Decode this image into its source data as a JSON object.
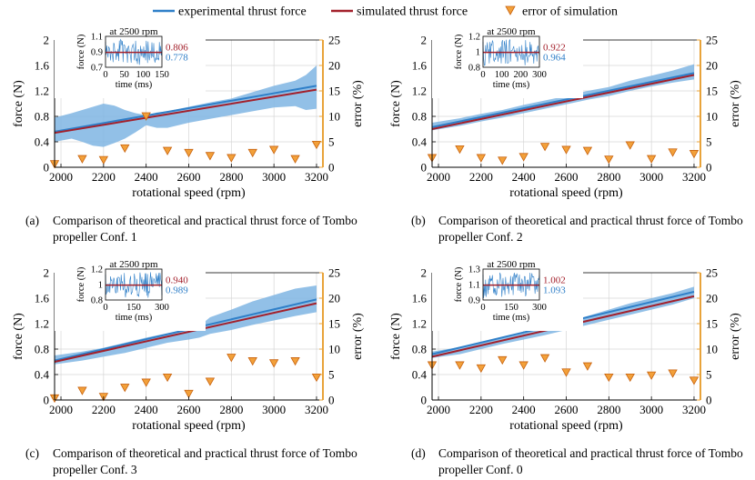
{
  "legend": {
    "experimental": "experimental thrust force",
    "simulated": "simulated thrust force",
    "error": "error of simulation"
  },
  "colors": {
    "experimental": "#2f7fc8",
    "band": "#7fb5e3",
    "simulated": "#a3202b",
    "error_fill": "#f2a03a",
    "error_stroke": "#c8620e",
    "right_axis": "#e8a33a"
  },
  "chart_data": [
    {
      "type": "line",
      "panel": "(a)",
      "caption_label": "(a)",
      "caption": "Comparison of theoretical and practical thrust force of Tombo propeller Conf. 1",
      "xlabel": "rotational speed (rpm)",
      "ylabel": "force (N)",
      "y2label": "error (%)",
      "xlim": [
        1970,
        3230
      ],
      "ylim": [
        0,
        2
      ],
      "y2lim": [
        0,
        25
      ],
      "xticks": [
        2000,
        2200,
        2400,
        2600,
        2800,
        3000,
        3200
      ],
      "yticks": [
        "0",
        "0.4",
        "0.8",
        "1.2",
        "1.6",
        "2"
      ],
      "y2ticks": [
        "0",
        "5",
        "10",
        "15",
        "20",
        "25"
      ],
      "experimental": {
        "x": [
          1970,
          3200
        ],
        "y": [
          0.56,
          1.28
        ]
      },
      "simulated": {
        "x": [
          1970,
          3200
        ],
        "y": [
          0.54,
          1.22
        ]
      },
      "band": {
        "x": [
          1970,
          2050,
          2100,
          2150,
          2200,
          2250,
          2300,
          2350,
          2400,
          2450,
          2500,
          2600,
          2700,
          2800,
          2900,
          3000,
          3100,
          3150,
          3200
        ],
        "upper": [
          0.78,
          0.85,
          0.9,
          0.95,
          1.0,
          0.97,
          0.9,
          0.85,
          0.82,
          0.86,
          0.88,
          0.95,
          1.02,
          1.08,
          1.18,
          1.28,
          1.36,
          1.45,
          1.6
        ],
        "lower": [
          0.4,
          0.45,
          0.4,
          0.34,
          0.32,
          0.38,
          0.45,
          0.55,
          0.66,
          0.62,
          0.62,
          0.7,
          0.76,
          0.82,
          0.88,
          0.94,
          0.96,
          0.9,
          0.92
        ]
      },
      "error": {
        "x": [
          1970,
          2100,
          2200,
          2300,
          2400,
          2500,
          2600,
          2700,
          2800,
          2900,
          3000,
          3100,
          3200
        ],
        "y": [
          0.6,
          1.6,
          1.4,
          3.7,
          10.0,
          3.2,
          2.8,
          2.2,
          1.8,
          2.8,
          3.4,
          1.6,
          4.4
        ]
      },
      "inset": {
        "title": "at 2500 rpm",
        "ylabel": "force (N)",
        "xlabel": "time (ms)",
        "yticks": [
          "1.1",
          "0.9",
          "0.7"
        ],
        "xticks": [
          "0",
          "50",
          "100",
          "150"
        ],
        "simulated_value": "0.806",
        "experimental_value": "0.778"
      }
    },
    {
      "type": "line",
      "panel": "(b)",
      "caption_label": "(b)",
      "caption": "Comparison of theoretical and practical thrust force of Tombo propeller Conf. 2",
      "xlabel": "rotational speed (rpm)",
      "ylabel": "force (N)",
      "y2label": "error (%)",
      "xlim": [
        1970,
        3230
      ],
      "ylim": [
        0,
        2
      ],
      "y2lim": [
        0,
        25
      ],
      "xticks": [
        2000,
        2200,
        2400,
        2600,
        2800,
        3000,
        3200
      ],
      "yticks": [
        "0",
        "0.4",
        "0.8",
        "1.2",
        "1.6",
        "2"
      ],
      "y2ticks": [
        "0",
        "5",
        "10",
        "15",
        "20",
        "25"
      ],
      "experimental": {
        "x": [
          1970,
          3200
        ],
        "y": [
          0.63,
          1.48
        ]
      },
      "simulated": {
        "x": [
          1970,
          3200
        ],
        "y": [
          0.6,
          1.45
        ]
      },
      "band": {
        "x": [
          1970,
          2100,
          2200,
          2300,
          2400,
          2500,
          2600,
          2700,
          2800,
          2900,
          3000,
          3100,
          3200
        ],
        "upper": [
          0.7,
          0.77,
          0.84,
          0.9,
          0.98,
          1.05,
          1.12,
          1.2,
          1.26,
          1.36,
          1.44,
          1.52,
          1.62
        ],
        "lower": [
          0.58,
          0.65,
          0.72,
          0.78,
          0.85,
          0.92,
          0.99,
          1.06,
          1.12,
          1.2,
          1.27,
          1.33,
          1.38
        ]
      },
      "error": {
        "x": [
          1970,
          2100,
          2200,
          2300,
          2400,
          2500,
          2600,
          2700,
          2800,
          2900,
          3000,
          3100,
          3200
        ],
        "y": [
          1.8,
          3.5,
          1.8,
          1.3,
          2.0,
          4.0,
          3.4,
          3.2,
          1.5,
          4.3,
          1.6,
          2.9,
          2.6
        ]
      },
      "inset": {
        "title": "at 2500 rpm",
        "ylabel": "force (N)",
        "xlabel": "time (ms)",
        "yticks": [
          "1.2",
          "1",
          "0.8"
        ],
        "xticks": [
          "0",
          "100",
          "200",
          "300"
        ],
        "simulated_value": "0.922",
        "experimental_value": "0.964"
      }
    },
    {
      "type": "line",
      "panel": "(c)",
      "caption_label": "(c)",
      "caption": "Comparison of theoretical and practical thrust force of Tombo propeller Conf. 3",
      "xlabel": "rotational speed (rpm)",
      "ylabel": "force (N)",
      "y2label": "error (%)",
      "xlim": [
        1970,
        3230
      ],
      "ylim": [
        0,
        2
      ],
      "y2lim": [
        0,
        25
      ],
      "xticks": [
        2000,
        2200,
        2400,
        2600,
        2800,
        3000,
        3200
      ],
      "yticks": [
        "0",
        "0.4",
        "0.8",
        "1.2",
        "1.6",
        "2"
      ],
      "y2ticks": [
        "0",
        "5",
        "10",
        "15",
        "20",
        "25"
      ],
      "experimental": {
        "x": [
          1970,
          3200
        ],
        "y": [
          0.62,
          1.58
        ]
      },
      "simulated": {
        "x": [
          1970,
          3200
        ],
        "y": [
          0.6,
          1.52
        ]
      },
      "band": {
        "x": [
          1970,
          2100,
          2200,
          2300,
          2400,
          2500,
          2600,
          2650,
          2700,
          2800,
          2900,
          3000,
          3100,
          3200
        ],
        "upper": [
          0.7,
          0.76,
          0.82,
          0.9,
          0.98,
          1.05,
          1.12,
          1.16,
          1.3,
          1.42,
          1.55,
          1.65,
          1.75,
          1.8
        ],
        "lower": [
          0.56,
          0.62,
          0.68,
          0.74,
          0.82,
          0.9,
          0.95,
          0.98,
          1.04,
          1.1,
          1.18,
          1.25,
          1.32,
          1.38
        ]
      },
      "error": {
        "x": [
          1970,
          2100,
          2200,
          2300,
          2400,
          2500,
          2600,
          2700,
          2800,
          2900,
          3000,
          3100,
          3200
        ],
        "y": [
          0.3,
          1.8,
          0.6,
          2.4,
          3.4,
          4.4,
          1.2,
          3.6,
          8.3,
          7.6,
          7.2,
          7.6,
          4.4
        ]
      },
      "inset": {
        "title": "at 2500 rpm",
        "ylabel": "force (N)",
        "xlabel": "time (ms)",
        "yticks": [
          "1.2",
          "1",
          "0.8"
        ],
        "xticks": [
          "0",
          "150",
          "300"
        ],
        "simulated_value": "0.940",
        "experimental_value": "0.989"
      }
    },
    {
      "type": "line",
      "panel": "(d)",
      "caption_label": "(d)",
      "caption": "Comparison of theoretical and practical thrust force of Tombo propeller Conf. 0",
      "xlabel": "rotational speed (rpm)",
      "ylabel": "force (N)",
      "y2label": "error (%)",
      "xlim": [
        1970,
        3230
      ],
      "ylim": [
        0,
        2
      ],
      "y2lim": [
        0,
        25
      ],
      "xticks": [
        2000,
        2200,
        2400,
        2600,
        2800,
        3000,
        3200
      ],
      "yticks": [
        "0",
        "0.4",
        "0.8",
        "1.2",
        "1.6",
        "2"
      ],
      "y2ticks": [
        "0",
        "5",
        "10",
        "15",
        "20",
        "25"
      ],
      "experimental": {
        "x": [
          1970,
          3200
        ],
        "y": [
          0.72,
          1.7
        ]
      },
      "simulated": {
        "x": [
          1970,
          3200
        ],
        "y": [
          0.68,
          1.63
        ]
      },
      "band": {
        "x": [
          1970,
          2100,
          2200,
          2300,
          2400,
          2500,
          2600,
          2700,
          2800,
          2900,
          3000,
          3100,
          3200
        ],
        "upper": [
          0.76,
          0.83,
          0.9,
          0.98,
          1.06,
          1.14,
          1.22,
          1.32,
          1.42,
          1.52,
          1.6,
          1.68,
          1.78
        ],
        "lower": [
          0.66,
          0.72,
          0.8,
          0.88,
          0.95,
          1.02,
          1.1,
          1.18,
          1.26,
          1.34,
          1.42,
          1.5,
          1.6
        ]
      },
      "error": {
        "x": [
          1970,
          2100,
          2200,
          2300,
          2400,
          2500,
          2600,
          2700,
          2800,
          2900,
          3000,
          3100,
          3200
        ],
        "y": [
          6.8,
          6.8,
          6.2,
          7.8,
          6.8,
          8.2,
          5.4,
          6.6,
          4.4,
          4.4,
          4.8,
          5.2,
          3.8
        ]
      },
      "inset": {
        "title": "at 2500 rpm",
        "ylabel": "force (N)",
        "xlabel": "time (ms)",
        "yticks": [
          "1.3",
          "1.1",
          "0.9"
        ],
        "xticks": [
          "0",
          "150",
          "300"
        ],
        "simulated_value": "1.002",
        "experimental_value": "1.093"
      }
    }
  ]
}
